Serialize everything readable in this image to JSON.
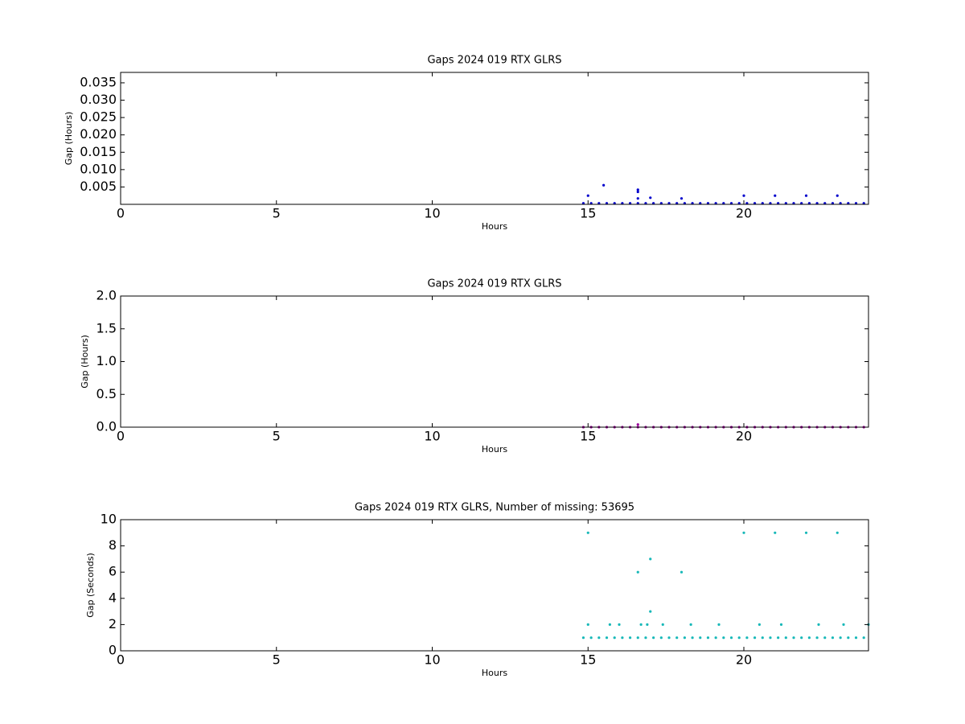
{
  "chart_data": [
    {
      "type": "scatter",
      "title": "Gaps 2024 019 RTX  GLRS",
      "xlabel": "Hours",
      "ylabel": "Gap (Hours)",
      "color": "#0000cc",
      "xlim": [
        0,
        24
      ],
      "xticks": [
        0,
        5,
        10,
        15,
        20
      ],
      "ylim": [
        0,
        0.038
      ],
      "yticks": [
        0.005,
        {
          "value": 0.01,
          "label": "0.010"
        },
        0.015,
        {
          "value": 0.02,
          "label": "0.020"
        },
        0.025,
        {
          "value": 0.03,
          "label": "0.030"
        },
        0.035
      ],
      "x": [
        14.85,
        15.1,
        15.35,
        15.6,
        15.85,
        16.1,
        16.35,
        16.6,
        16.85,
        17.1,
        17.35,
        17.6,
        17.85,
        18.1,
        18.35,
        18.6,
        18.85,
        19.1,
        19.35,
        19.6,
        19.85,
        20.1,
        20.35,
        20.6,
        20.85,
        21.1,
        21.35,
        21.6,
        21.85,
        22.1,
        22.35,
        22.6,
        22.85,
        23.1,
        23.35,
        23.6,
        23.85,
        15.0,
        15.5,
        16.6,
        16.6,
        16.6,
        17.0,
        18.0,
        20.0,
        21.0,
        22.0,
        23.0
      ],
      "values": [
        0.0003,
        0.0003,
        0.0003,
        0.0003,
        0.0003,
        0.0003,
        0.0003,
        0.0003,
        0.0003,
        0.0003,
        0.0003,
        0.0003,
        0.0003,
        0.0003,
        0.0003,
        0.0003,
        0.0003,
        0.0003,
        0.0003,
        0.0003,
        0.0003,
        0.0003,
        0.0003,
        0.0003,
        0.0003,
        0.0003,
        0.0003,
        0.0003,
        0.0003,
        0.0003,
        0.0003,
        0.0003,
        0.0003,
        0.0003,
        0.0003,
        0.0003,
        0.0003,
        0.0025,
        0.0055,
        0.0042,
        0.0036,
        0.0017,
        0.0019,
        0.0017,
        0.0025,
        0.0025,
        0.0025,
        0.0025
      ]
    },
    {
      "type": "scatter",
      "title": "Gaps 2024 019 RTX  GLRS",
      "xlabel": "Hours",
      "ylabel": "Gap (Hours)",
      "color": "#990099",
      "xlim": [
        0,
        24
      ],
      "xticks": [
        0,
        5,
        10,
        15,
        20
      ],
      "ylim": [
        0,
        2
      ],
      "yticks": [
        {
          "value": 0,
          "label": "0.0"
        },
        0.5,
        {
          "value": 1,
          "label": "1.0"
        },
        1.5,
        {
          "value": 2,
          "label": "2.0"
        }
      ],
      "x": [
        14.85,
        15.1,
        15.35,
        15.6,
        15.85,
        16.1,
        16.35,
        16.6,
        16.85,
        17.1,
        17.35,
        17.6,
        17.85,
        18.1,
        18.35,
        18.6,
        18.85,
        19.1,
        19.35,
        19.6,
        19.85,
        20.1,
        20.35,
        20.6,
        20.85,
        21.1,
        21.35,
        21.6,
        21.85,
        22.1,
        22.35,
        22.6,
        22.85,
        23.1,
        23.35,
        23.6,
        23.85,
        16.6
      ],
      "values": [
        0.0003,
        0.0003,
        0.0003,
        0.0003,
        0.0003,
        0.0003,
        0.0003,
        0.0003,
        0.0003,
        0.0003,
        0.0003,
        0.0003,
        0.0003,
        0.0003,
        0.0003,
        0.0003,
        0.0003,
        0.0003,
        0.0003,
        0.0003,
        0.0003,
        0.0003,
        0.0003,
        0.0003,
        0.0003,
        0.0003,
        0.0003,
        0.0003,
        0.0003,
        0.0003,
        0.0003,
        0.0003,
        0.0003,
        0.0003,
        0.0003,
        0.0003,
        0.0003,
        0.04
      ]
    },
    {
      "type": "scatter",
      "title": "Gaps 2024 019 RTX  GLRS, Number of missing: 53695",
      "xlabel": "Hours",
      "ylabel": "Gap (Seconds)",
      "color": "#17b8b8",
      "xlim": [
        0,
        24
      ],
      "xticks": [
        0,
        5,
        10,
        15,
        20
      ],
      "ylim": [
        0,
        10
      ],
      "yticks": [
        0,
        2,
        4,
        6,
        8,
        10
      ],
      "x": [
        14.85,
        15.1,
        15.35,
        15.6,
        15.85,
        16.1,
        16.35,
        16.6,
        16.85,
        17.1,
        17.35,
        17.6,
        17.85,
        18.1,
        18.35,
        18.6,
        18.85,
        19.1,
        19.35,
        19.6,
        19.85,
        20.1,
        20.35,
        20.6,
        20.85,
        21.1,
        21.35,
        21.6,
        21.85,
        22.1,
        22.35,
        22.6,
        22.85,
        23.1,
        23.35,
        23.6,
        23.85,
        15.0,
        16.6,
        17.0,
        17.0,
        18.0,
        20.0,
        21.0,
        22.0,
        23.0,
        15.0,
        15.7,
        16.0,
        16.7,
        16.9,
        17.4,
        18.3,
        19.2,
        20.5,
        21.2,
        22.4,
        23.2,
        24.0
      ],
      "values": [
        1,
        1,
        1,
        1,
        1,
        1,
        1,
        1,
        1,
        1,
        1,
        1,
        1,
        1,
        1,
        1,
        1,
        1,
        1,
        1,
        1,
        1,
        1,
        1,
        1,
        1,
        1,
        1,
        1,
        1,
        1,
        1,
        1,
        1,
        1,
        1,
        1,
        9,
        6,
        7,
        3,
        6,
        9,
        9,
        9,
        9,
        2,
        2,
        2,
        2,
        2,
        2,
        2,
        2,
        2,
        2,
        2,
        2,
        2
      ]
    }
  ]
}
